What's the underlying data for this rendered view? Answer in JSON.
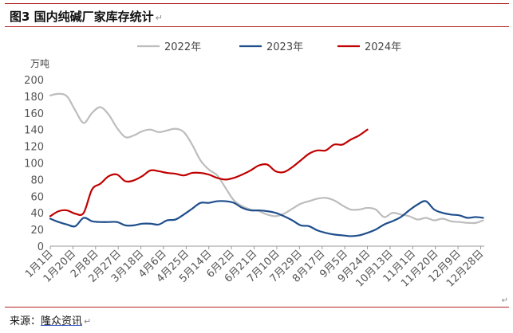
{
  "header": {
    "title": "图3  国内纯碱厂家库存统计",
    "mark": "↵"
  },
  "footer": {
    "source_label": "来源：",
    "source_name": "隆众资讯",
    "mark": "↵"
  },
  "colors": {
    "rule": "#b22222",
    "s2022": "#bdbdbd",
    "s2023": "#1f4e8c",
    "s2024": "#c00000"
  },
  "chart_data": {
    "type": "line",
    "title": "",
    "ylabel": "万吨",
    "xlabel": "",
    "ylim": [
      0,
      200
    ],
    "yticks": [
      0,
      20,
      40,
      60,
      80,
      100,
      120,
      140,
      160,
      180,
      200
    ],
    "xlim": [
      1,
      365
    ],
    "xticks": [
      {
        "label": "1月1日",
        "day": 1
      },
      {
        "label": "1月20日",
        "day": 20
      },
      {
        "label": "2月8日",
        "day": 39
      },
      {
        "label": "2月27日",
        "day": 58
      },
      {
        "label": "3月18日",
        "day": 77
      },
      {
        "label": "4月6日",
        "day": 96
      },
      {
        "label": "4月25日",
        "day": 115
      },
      {
        "label": "5月14日",
        "day": 134
      },
      {
        "label": "6月2日",
        "day": 153
      },
      {
        "label": "6月21日",
        "day": 172
      },
      {
        "label": "7月10日",
        "day": 191
      },
      {
        "label": "7月29日",
        "day": 210
      },
      {
        "label": "8月17日",
        "day": 229
      },
      {
        "label": "9月5日",
        "day": 248
      },
      {
        "label": "9月24日",
        "day": 267
      },
      {
        "label": "10月13日",
        "day": 286
      },
      {
        "label": "11月1日",
        "day": 305
      },
      {
        "label": "11月20日",
        "day": 324
      },
      {
        "label": "12月9日",
        "day": 343
      },
      {
        "label": "12月28日",
        "day": 362
      }
    ],
    "legend_position": "top",
    "grid": false,
    "series": [
      {
        "name": "2022年",
        "color": "#bdbdbd",
        "x": [
          1,
          8,
          15,
          22,
          29,
          36,
          43,
          50,
          57,
          64,
          71,
          78,
          85,
          92,
          99,
          106,
          113,
          120,
          127,
          134,
          141,
          148,
          155,
          162,
          169,
          176,
          183,
          190,
          197,
          204,
          211,
          218,
          225,
          232,
          239,
          246,
          253,
          260,
          267,
          274,
          281,
          288,
          295,
          302,
          309,
          316,
          323,
          330,
          337,
          344,
          351,
          358,
          364
        ],
        "y": [
          181,
          183,
          180,
          163,
          148,
          160,
          167,
          158,
          142,
          131,
          133,
          138,
          140,
          137,
          139,
          141,
          137,
          122,
          103,
          92,
          85,
          70,
          55,
          48,
          44,
          42,
          38,
          36,
          39,
          45,
          51,
          54,
          57,
          58,
          55,
          49,
          44,
          44,
          46,
          44,
          35,
          40,
          38,
          36,
          32,
          34,
          31,
          33,
          30,
          29,
          28,
          28,
          31
        ]
      },
      {
        "name": "2023年",
        "color": "#1f4e8c",
        "x": [
          1,
          8,
          15,
          22,
          29,
          36,
          43,
          50,
          57,
          64,
          71,
          78,
          85,
          92,
          99,
          106,
          113,
          120,
          127,
          134,
          141,
          148,
          155,
          162,
          169,
          176,
          183,
          190,
          197,
          204,
          211,
          218,
          225,
          232,
          239,
          246,
          253,
          260,
          267,
          274,
          281,
          288,
          295,
          302,
          309,
          316,
          323,
          330,
          337,
          344,
          351,
          358,
          364
        ],
        "y": [
          33,
          29,
          26,
          24,
          34,
          30,
          29,
          29,
          29,
          25,
          25,
          27,
          27,
          26,
          31,
          32,
          38,
          45,
          52,
          52,
          54,
          54,
          52,
          46,
          43,
          43,
          42,
          40,
          36,
          31,
          25,
          24,
          19,
          16,
          14,
          13,
          12,
          13,
          16,
          20,
          26,
          30,
          35,
          43,
          50,
          54,
          44,
          40,
          38,
          37,
          34,
          35,
          34
        ]
      },
      {
        "name": "2024年",
        "color": "#c00000",
        "x": [
          1,
          8,
          15,
          22,
          29,
          36,
          43,
          50,
          57,
          64,
          71,
          78,
          85,
          92,
          99,
          106,
          113,
          120,
          127,
          134,
          141,
          148,
          155,
          162,
          169,
          176,
          183,
          190,
          197,
          204,
          211,
          218,
          225,
          232,
          239,
          246,
          253,
          260,
          267
        ],
        "y": [
          36,
          42,
          43,
          39,
          40,
          68,
          75,
          84,
          86,
          78,
          79,
          84,
          91,
          90,
          88,
          87,
          85,
          88,
          88,
          86,
          82,
          80,
          82,
          86,
          91,
          97,
          98,
          90,
          89,
          95,
          103,
          111,
          115,
          115,
          122,
          122,
          128,
          133,
          140
        ]
      }
    ]
  }
}
